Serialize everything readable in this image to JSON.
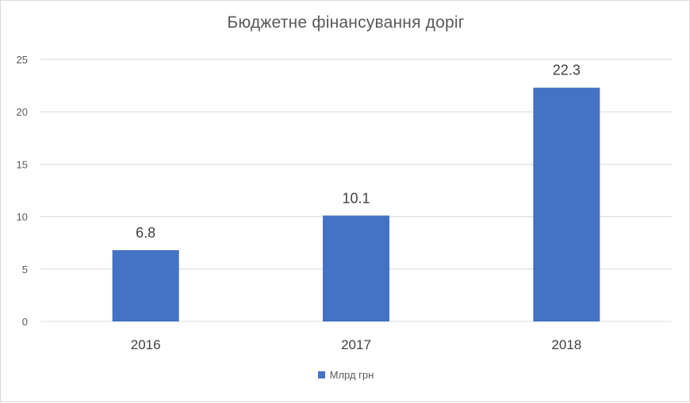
{
  "chart_data": {
    "type": "bar",
    "title": "Бюджетне фінансування доріг",
    "categories": [
      "2016",
      "2017",
      "2018"
    ],
    "series": [
      {
        "name": "Млрд грн",
        "values": [
          6.8,
          10.1,
          22.3
        ],
        "color": "#4472C4"
      }
    ],
    "data_labels": [
      "6.8",
      "10.1",
      "22.3"
    ],
    "ylim": [
      0,
      25
    ],
    "yticks": [
      0,
      5,
      10,
      15,
      20,
      25
    ],
    "grid": true,
    "legend_position": "bottom"
  },
  "colors": {
    "bar": "#4472C4",
    "grid": "#d9d9d9",
    "text": "#595959",
    "label": "#404040"
  }
}
